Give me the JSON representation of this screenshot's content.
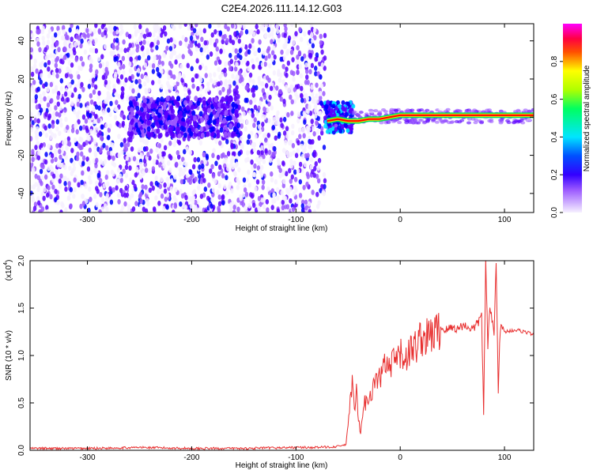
{
  "figure_title": "C2E4.2026.111.14.12.G03",
  "chart_data": [
    {
      "type": "heatmap",
      "xlabel": "Height of straight line (km)",
      "ylabel": "Frequency (Hz)",
      "xlim": [
        -355,
        128
      ],
      "ylim": [
        -50,
        49
      ],
      "xticks": [
        -300,
        -200,
        -100,
        0,
        100
      ],
      "xtick_labels": [
        "-300",
        "-200",
        "-100",
        "0",
        "100"
      ],
      "yticks": [
        -40,
        -20,
        0,
        20,
        40
      ],
      "ytick_labels": [
        "-40",
        "-20",
        "0",
        "20",
        "40"
      ],
      "colorbar": {
        "label": "Normalized spectral amplitude",
        "range": [
          0,
          1
        ],
        "ticks": [
          0.0,
          0.2,
          0.4,
          0.6,
          0.8
        ],
        "tick_labels": [
          "0.0",
          "0.2",
          "0.4",
          "0.6",
          "0.8"
        ],
        "colormap": [
          "#f6f0ff",
          "#9b59ff",
          "#5b00ff",
          "#0000ff",
          "#00e5ff",
          "#00ff00",
          "#ffff00",
          "#ff0000",
          "#ff00ff"
        ]
      },
      "regions": [
        {
          "x_range": [
            -355,
            -72
          ],
          "freq_range": [
            -50,
            49
          ],
          "description_level": 0.15
        },
        {
          "x_range": [
            -260,
            -155
          ],
          "freq_range": [
            -10,
            10
          ],
          "description_level": 0.3
        },
        {
          "x_range": [
            -72,
            -45
          ],
          "freq_range": [
            -8,
            8
          ],
          "description_level": 0.45
        },
        {
          "x_range": [
            -45,
            128
          ],
          "freq_range": [
            -3,
            4
          ],
          "description_level": 0.9
        }
      ],
      "ridge_line": {
        "x": [
          -70,
          -60,
          -50,
          -40,
          -30,
          -20,
          -10,
          0,
          10,
          20,
          30,
          40,
          50,
          60,
          70,
          80,
          90,
          100,
          110,
          128
        ],
        "y": [
          -2,
          -1,
          -2,
          -2,
          -1,
          -1,
          0,
          1,
          1,
          1,
          1,
          1,
          1,
          1,
          1,
          1,
          1,
          1,
          1,
          1
        ]
      }
    },
    {
      "type": "line",
      "xlabel": "Height of straight line (km)",
      "ylabel": "SNR (10 * v/v)",
      "multiplier_label": "(x10",
      "multiplier_exp": "4",
      "xlim": [
        -355,
        128
      ],
      "ylim": [
        0,
        2.0
      ],
      "xticks": [
        -300,
        -200,
        -100,
        0,
        100
      ],
      "xtick_labels": [
        "-300",
        "-200",
        "-100",
        "0",
        "100"
      ],
      "yticks": [
        0.0,
        0.5,
        1.0,
        1.5,
        2.0
      ],
      "ytick_labels": [
        "0.0",
        "0.5",
        "1.0",
        "1.5",
        "2.0"
      ],
      "color": "#e83030",
      "series": [
        {
          "x": [
            -355,
            -300,
            -250,
            -200,
            -150,
            -100,
            -80,
            -60,
            -52,
            -50,
            -48,
            -46,
            -44,
            -42,
            -40,
            -38,
            -36,
            -34,
            -30,
            -25,
            -20,
            -15,
            -10,
            -5,
            0,
            5,
            10,
            15,
            20,
            25,
            30,
            35,
            40,
            45,
            50,
            55,
            60,
            65,
            70,
            75,
            78,
            80,
            82,
            84,
            86,
            88,
            90,
            92,
            94,
            96,
            100,
            110,
            120,
            128
          ],
          "values": [
            0.02,
            0.02,
            0.03,
            0.02,
            0.02,
            0.03,
            0.03,
            0.04,
            0.06,
            0.25,
            0.55,
            0.7,
            0.4,
            0.6,
            0.3,
            0.2,
            0.35,
            0.5,
            0.55,
            0.7,
            0.75,
            0.9,
            0.85,
            0.95,
            1.0,
            0.98,
            1.05,
            1.1,
            1.2,
            1.18,
            1.22,
            1.25,
            1.28,
            1.27,
            1.3,
            1.28,
            1.32,
            1.3,
            1.28,
            1.35,
            1.45,
            0.4,
            2.0,
            1.1,
            1.5,
            1.4,
            1.2,
            2.0,
            0.65,
            1.3,
            1.25,
            1.27,
            1.25,
            1.22
          ]
        }
      ]
    }
  ]
}
